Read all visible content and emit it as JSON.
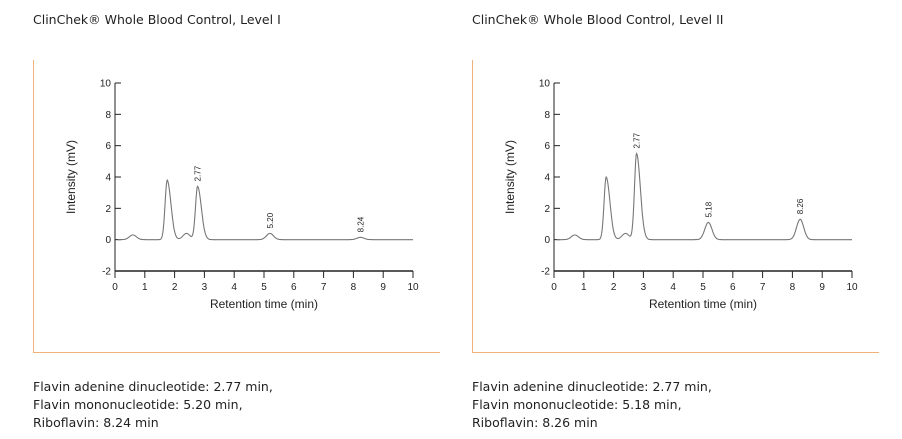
{
  "panels": [
    {
      "title": "ClinChek® Whole Blood Control, Level I",
      "captions": [
        "Flavin adenine dinucleotide: 2.77 min,",
        "Flavin mononucleotide: 5.20 min,",
        "Riboflavin: 8.24 min"
      ]
    },
    {
      "title": "ClinChek® Whole Blood Control, Level II",
      "captions": [
        "Flavin adenine dinucleotide: 2.77 min,",
        "Flavin mononucleotide: 5.18 min,",
        "Riboflavin: 8.26 min"
      ]
    }
  ],
  "chart_data": [
    {
      "type": "line",
      "title": "ClinChek® Whole Blood Control, Level I",
      "xlabel": "Retention time (min)",
      "ylabel": "Intensity (mV)",
      "xlim": [
        0,
        10
      ],
      "ylim": [
        -2,
        10
      ],
      "xticks": [
        0,
        1,
        2,
        3,
        4,
        5,
        6,
        7,
        8,
        9,
        10
      ],
      "yticks": [
        -2,
        0,
        2,
        4,
        6,
        8,
        10
      ],
      "grid": false,
      "baseline": 0,
      "peaks": [
        {
          "x": 0.6,
          "y": 0.3
        },
        {
          "x": 1.75,
          "y": 3.8
        },
        {
          "x": 2.4,
          "y": 0.4
        },
        {
          "x": 2.77,
          "y": 3.4
        },
        {
          "x": 5.2,
          "y": 0.4
        },
        {
          "x": 8.24,
          "y": 0.15
        }
      ],
      "peak_labels": [
        {
          "x": 2.77,
          "text": "2.77"
        },
        {
          "x": 5.2,
          "text": "5.20"
        },
        {
          "x": 8.24,
          "text": "8.24"
        }
      ]
    },
    {
      "type": "line",
      "title": "ClinChek® Whole Blood Control, Level II",
      "xlabel": "Retention time (min)",
      "ylabel": "Intensity (mV)",
      "xlim": [
        0,
        10
      ],
      "ylim": [
        -2,
        10
      ],
      "xticks": [
        0,
        1,
        2,
        3,
        4,
        5,
        6,
        7,
        8,
        9,
        10
      ],
      "yticks": [
        -2,
        0,
        2,
        4,
        6,
        8,
        10
      ],
      "grid": false,
      "baseline": 0,
      "peaks": [
        {
          "x": 0.7,
          "y": 0.3
        },
        {
          "x": 1.75,
          "y": 4.0
        },
        {
          "x": 2.4,
          "y": 0.4
        },
        {
          "x": 2.77,
          "y": 5.5
        },
        {
          "x": 5.18,
          "y": 1.1
        },
        {
          "x": 8.26,
          "y": 1.3
        }
      ],
      "peak_labels": [
        {
          "x": 2.77,
          "text": "2.77"
        },
        {
          "x": 5.18,
          "text": "5.18"
        },
        {
          "x": 8.26,
          "text": "8.26"
        }
      ]
    }
  ]
}
